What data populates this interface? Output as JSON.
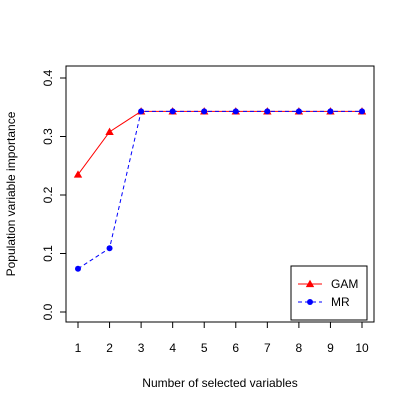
{
  "chart_data": {
    "type": "line",
    "title": "",
    "xlabel": "Number of selected variables",
    "ylabel": "Population variable importance",
    "x": [
      1,
      2,
      3,
      4,
      5,
      6,
      7,
      8,
      9,
      10
    ],
    "xlim": [
      1,
      10
    ],
    "ylim": [
      0,
      0.4
    ],
    "xticks": [
      "1",
      "2",
      "3",
      "4",
      "5",
      "6",
      "7",
      "8",
      "9",
      "10"
    ],
    "yticks": [
      "0.0",
      "0.1",
      "0.2",
      "0.3",
      "0.4"
    ],
    "grid": false,
    "legend_position": "bottom-right",
    "series": [
      {
        "name": "GAM",
        "color": "#ff0000",
        "marker": "triangle",
        "line_style": "solid",
        "values": [
          0.235,
          0.308,
          0.343,
          0.343,
          0.343,
          0.343,
          0.343,
          0.343,
          0.343,
          0.343
        ]
      },
      {
        "name": "MR",
        "color": "#0000ff",
        "marker": "circle",
        "line_style": "dashed",
        "values": [
          0.074,
          0.109,
          0.343,
          0.343,
          0.343,
          0.343,
          0.343,
          0.343,
          0.343,
          0.343
        ]
      }
    ]
  }
}
